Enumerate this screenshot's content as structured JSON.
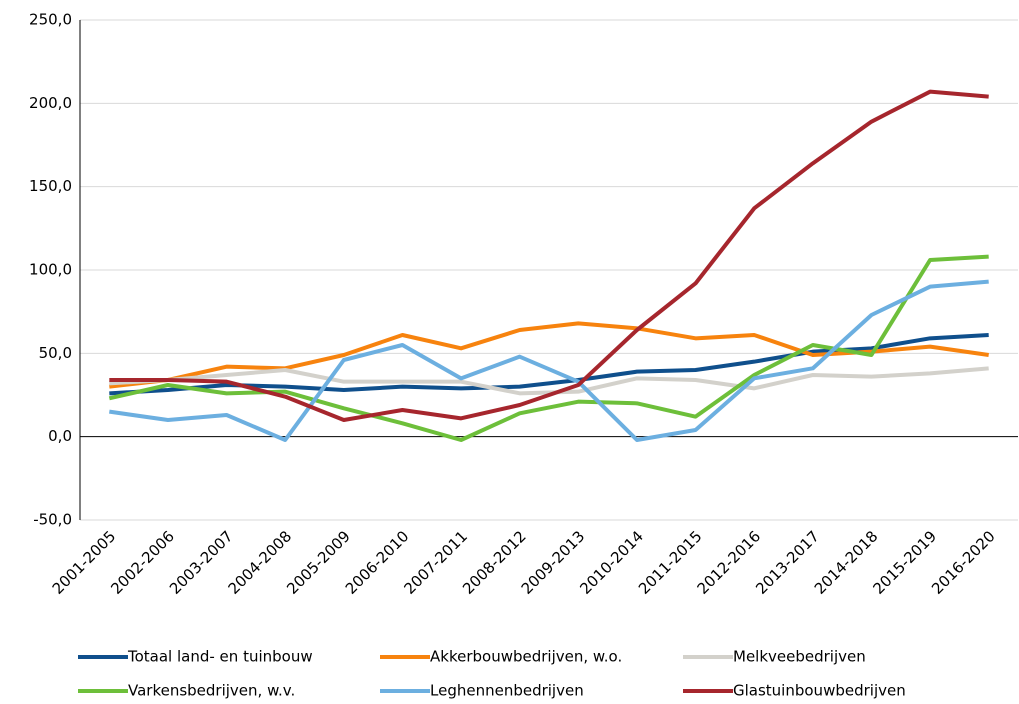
{
  "chart_data": {
    "type": "line",
    "categories": [
      "2001-2005",
      "2002-2006",
      "2003-2007",
      "2004-2008",
      "2005-2009",
      "2006-2010",
      "2007-2011",
      "2008-2012",
      "2009-2013",
      "2010-2014",
      "2011-2015",
      "2012-2016",
      "2013-2017",
      "2014-2018",
      "2015-2019",
      "2016-2020"
    ],
    "series": [
      {
        "name": "Totaal land- en tuinbouw",
        "color": "#0f4f8c",
        "values": [
          26,
          28,
          31,
          30,
          28,
          30,
          29,
          30,
          34,
          39,
          40,
          45,
          51,
          53,
          59,
          61
        ]
      },
      {
        "name": "Akkerbouwbedrijven, w.o.",
        "color": "#f7830e",
        "values": [
          30,
          34,
          42,
          41,
          49,
          61,
          53,
          64,
          68,
          65,
          59,
          61,
          49,
          51,
          54,
          49
        ]
      },
      {
        "name": "Melkveebedrijven",
        "color": "#d3d1cb",
        "values": [
          32,
          34,
          37,
          40,
          33,
          33,
          33,
          26,
          27,
          35,
          34,
          29,
          37,
          36,
          38,
          41
        ]
      },
      {
        "name": "Varkensbedrijven, w.v.",
        "color": "#6dbf3a",
        "values": [
          23,
          31,
          26,
          27,
          17,
          8,
          -2,
          14,
          21,
          20,
          12,
          37,
          55,
          49,
          106,
          108
        ]
      },
      {
        "name": "Leghennenbedrijven",
        "color": "#6cafe0",
        "values": [
          15,
          10,
          13,
          -2,
          46,
          55,
          35,
          48,
          33,
          -2,
          4,
          35,
          41,
          73,
          90,
          93
        ]
      },
      {
        "name": "Glastuinbouwbedrijven",
        "color": "#a6262d",
        "values": [
          34,
          34,
          33,
          24,
          10,
          16,
          11,
          19,
          31,
          64,
          92,
          137,
          164,
          189,
          207,
          204
        ]
      }
    ],
    "ylim": [
      -50,
      250
    ],
    "yticks": [
      {
        "value": -50,
        "label": "-50,0"
      },
      {
        "value": 0,
        "label": "0,0"
      },
      {
        "value": 50,
        "label": "50,0"
      },
      {
        "value": 100,
        "label": "100,0"
      },
      {
        "value": 150,
        "label": "150,0"
      },
      {
        "value": 200,
        "label": "200,0"
      },
      {
        "value": 250,
        "label": "250,0"
      }
    ],
    "grid": true,
    "legend": "bottom"
  }
}
